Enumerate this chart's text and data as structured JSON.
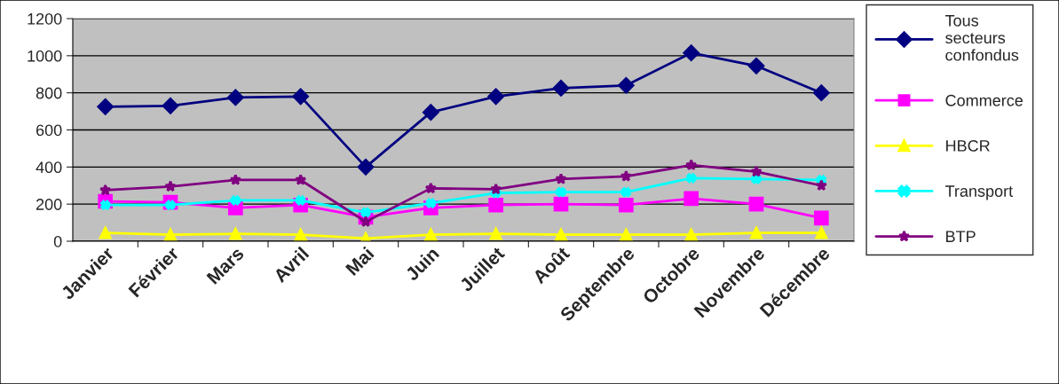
{
  "chart_data": {
    "type": "line",
    "categories": [
      "Janvier",
      "Février",
      "Mars",
      "Avril",
      "Mai",
      "Juin",
      "Juillet",
      "Août",
      "Septembre",
      "Octobre",
      "Novembre",
      "Décembre"
    ],
    "series": [
      {
        "name": "Tous secteurs confondus",
        "color": "#000080",
        "marker": "diamond",
        "values": [
          725,
          730,
          775,
          780,
          400,
          695,
          780,
          825,
          840,
          1015,
          945,
          800
        ]
      },
      {
        "name": "Commerce",
        "color": "#ff00ff",
        "marker": "square",
        "values": [
          215,
          210,
          180,
          195,
          130,
          180,
          195,
          200,
          195,
          230,
          200,
          125
        ]
      },
      {
        "name": "HBCR",
        "color": "#ffff00",
        "marker": "triangle",
        "values": [
          45,
          35,
          40,
          35,
          15,
          35,
          40,
          35,
          35,
          35,
          45,
          45
        ]
      },
      {
        "name": "Transport",
        "color": "#00ffff",
        "marker": "cross",
        "values": [
          195,
          195,
          220,
          220,
          155,
          205,
          260,
          265,
          265,
          340,
          335,
          330
        ]
      },
      {
        "name": "BTP",
        "color": "#800080",
        "marker": "star",
        "values": [
          275,
          295,
          330,
          330,
          105,
          285,
          280,
          335,
          350,
          410,
          375,
          300
        ]
      }
    ],
    "ylim": [
      0,
      1200
    ],
    "yticks": [
      0,
      200,
      400,
      600,
      800,
      1000,
      1200
    ],
    "grid": "y",
    "legend": "right",
    "line_style": "solid"
  }
}
